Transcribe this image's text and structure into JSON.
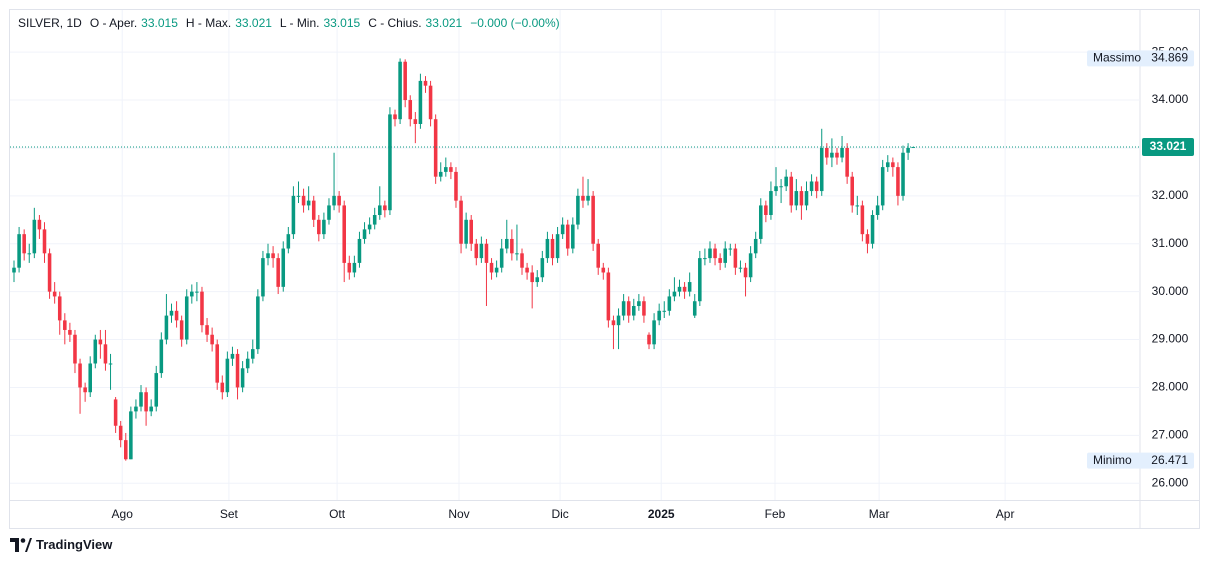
{
  "chart_data": {
    "type": "candlestick",
    "symbol": "SILVER, 1D",
    "ohlc_labels": [
      "O - Aper.",
      "H - Max.",
      "L - Min.",
      "C - Chius."
    ],
    "change_label": "−0.000 (−0.00%)",
    "up_color": "#089981",
    "down_color": "#f23645",
    "grid": true,
    "high_marker_label": "Massimo",
    "low_marker_label": "Minimo",
    "xlim": [
      -0.79,
      221.65
    ],
    "xticks": [
      {
        "value": 21.3,
        "label": "Ago"
      },
      {
        "value": 42.3,
        "label": "Set"
      },
      {
        "value": 63.6,
        "label": "Ott"
      },
      {
        "value": 87.6,
        "label": "Nov"
      },
      {
        "value": 107.5,
        "label": "Dic"
      },
      {
        "value": 127.4,
        "label": "2025"
      },
      {
        "value": 149.8,
        "label": "Feb"
      },
      {
        "value": 170.3,
        "label": "Mar"
      },
      {
        "value": 195.1,
        "label": "Apr"
      }
    ],
    "ylim": [
      25.65,
      35.88
    ],
    "yticks": [
      {
        "value": 26,
        "label": "26.000"
      },
      {
        "value": 27,
        "label": "27.000"
      },
      {
        "value": 28,
        "label": "28.000"
      },
      {
        "value": 29,
        "label": "29.000"
      },
      {
        "value": 30,
        "label": "30.000"
      },
      {
        "value": 31,
        "label": "31.000"
      },
      {
        "value": 32,
        "label": "32.000"
      },
      {
        "value": 33,
        "label": "33.000"
      },
      {
        "value": 34,
        "label": "34.000"
      },
      {
        "value": 35,
        "label": "35.000"
      }
    ],
    "ohlc": [
      [
        30.4,
        30.65,
        30.2,
        30.5
      ],
      [
        30.5,
        31.35,
        30.4,
        31.2
      ],
      [
        31.2,
        31.3,
        30.65,
        30.8
      ],
      [
        30.8,
        31.0,
        30.6,
        30.8
      ],
      [
        30.8,
        31.75,
        30.7,
        31.5
      ],
      [
        31.5,
        31.6,
        31.1,
        31.3
      ],
      [
        31.3,
        31.45,
        30.6,
        30.8
      ],
      [
        30.8,
        30.9,
        29.85,
        30.0
      ],
      [
        30.0,
        30.2,
        29.75,
        29.9
      ],
      [
        29.9,
        30.0,
        29.1,
        29.4
      ],
      [
        29.4,
        29.55,
        28.9,
        29.2
      ],
      [
        29.2,
        29.35,
        28.95,
        29.1
      ],
      [
        29.1,
        29.2,
        28.3,
        28.5
      ],
      [
        28.5,
        28.6,
        27.45,
        28.0
      ],
      [
        28.0,
        28.1,
        27.7,
        27.9
      ],
      [
        27.9,
        28.65,
        27.8,
        28.5
      ],
      [
        28.5,
        29.1,
        28.4,
        29.0
      ],
      [
        29.0,
        29.2,
        28.6,
        28.9
      ],
      [
        28.9,
        29.2,
        28.35,
        28.5
      ],
      [
        28.5,
        28.7,
        27.95,
        28.5
      ],
      [
        27.75,
        27.8,
        27.05,
        27.2
      ],
      [
        27.2,
        27.3,
        26.75,
        26.9
      ],
      [
        26.9,
        27.05,
        26.471,
        26.5
      ],
      [
        26.5,
        27.6,
        26.5,
        27.5
      ],
      [
        27.5,
        27.75,
        27.35,
        27.6
      ],
      [
        27.6,
        28.05,
        27.5,
        27.9
      ],
      [
        27.9,
        28.0,
        27.2,
        27.5
      ],
      [
        27.5,
        27.75,
        27.4,
        27.6
      ],
      [
        27.6,
        28.45,
        27.5,
        28.3
      ],
      [
        28.3,
        29.15,
        28.2,
        29.0
      ],
      [
        29.0,
        29.95,
        28.9,
        29.5
      ],
      [
        29.5,
        29.75,
        29.35,
        29.6
      ],
      [
        29.6,
        29.8,
        29.25,
        29.4
      ],
      [
        29.4,
        29.5,
        28.85,
        29.0
      ],
      [
        29.0,
        30.05,
        28.9,
        29.9
      ],
      [
        29.9,
        30.15,
        29.75,
        30.0
      ],
      [
        30.0,
        30.2,
        29.8,
        30.0
      ],
      [
        30.0,
        30.1,
        29.15,
        29.3
      ],
      [
        29.3,
        29.45,
        28.95,
        29.1
      ],
      [
        29.1,
        29.25,
        28.75,
        28.9
      ],
      [
        28.9,
        29.0,
        27.95,
        28.1
      ],
      [
        28.1,
        28.25,
        27.75,
        27.9
      ],
      [
        27.9,
        28.75,
        27.8,
        28.6
      ],
      [
        28.6,
        28.85,
        28.45,
        28.7
      ],
      [
        28.7,
        28.8,
        27.75,
        28.0
      ],
      [
        28.0,
        28.55,
        27.9,
        28.4
      ],
      [
        28.4,
        28.75,
        28.3,
        28.6
      ],
      [
        28.6,
        29.0,
        28.5,
        28.8
      ],
      [
        28.8,
        30.05,
        28.7,
        29.9
      ],
      [
        29.9,
        30.85,
        29.8,
        30.7
      ],
      [
        30.7,
        31.0,
        30.55,
        30.8
      ],
      [
        30.8,
        30.95,
        30.5,
        30.7
      ],
      [
        30.7,
        30.8,
        29.95,
        30.1
      ],
      [
        30.1,
        31.05,
        30.0,
        30.9
      ],
      [
        30.9,
        31.35,
        30.8,
        31.2
      ],
      [
        31.2,
        32.2,
        31.1,
        32.0
      ],
      [
        32.0,
        32.3,
        31.85,
        32.0
      ],
      [
        32.0,
        32.15,
        31.65,
        31.8
      ],
      [
        31.8,
        32.2,
        31.7,
        31.9
      ],
      [
        31.9,
        32.0,
        31.35,
        31.5
      ],
      [
        31.5,
        31.6,
        31.05,
        31.2
      ],
      [
        31.2,
        31.65,
        31.1,
        31.5
      ],
      [
        31.5,
        31.95,
        31.4,
        31.8
      ],
      [
        31.8,
        32.9,
        31.7,
        32.0
      ],
      [
        32.0,
        32.1,
        31.65,
        31.8
      ],
      [
        31.8,
        31.9,
        30.2,
        30.6
      ],
      [
        30.6,
        30.75,
        30.25,
        30.4
      ],
      [
        30.4,
        30.75,
        30.3,
        30.6
      ],
      [
        30.6,
        31.25,
        30.5,
        31.1
      ],
      [
        31.1,
        31.45,
        31.0,
        31.3
      ],
      [
        31.3,
        31.55,
        31.2,
        31.4
      ],
      [
        31.4,
        31.75,
        31.3,
        31.6
      ],
      [
        31.6,
        32.2,
        31.5,
        31.8
      ],
      [
        31.8,
        31.9,
        31.55,
        31.7
      ],
      [
        31.7,
        33.85,
        31.6,
        33.7
      ],
      [
        33.7,
        33.8,
        33.45,
        33.6
      ],
      [
        33.6,
        34.869,
        33.5,
        34.8
      ],
      [
        34.8,
        34.85,
        33.85,
        34.0
      ],
      [
        34.0,
        34.1,
        33.45,
        33.6
      ],
      [
        33.6,
        33.75,
        33.1,
        33.5
      ],
      [
        33.5,
        34.55,
        33.4,
        34.4
      ],
      [
        34.4,
        34.5,
        34.15,
        34.3
      ],
      [
        34.3,
        34.4,
        33.45,
        33.6
      ],
      [
        33.6,
        33.7,
        32.25,
        32.4
      ],
      [
        32.4,
        32.7,
        32.3,
        32.5
      ],
      [
        32.5,
        32.8,
        32.4,
        32.6
      ],
      [
        32.6,
        32.7,
        32.35,
        32.5
      ],
      [
        32.5,
        32.6,
        31.75,
        31.9
      ],
      [
        31.9,
        32.0,
        30.8,
        31.0
      ],
      [
        31.0,
        31.65,
        30.9,
        31.5
      ],
      [
        31.5,
        31.6,
        30.85,
        31.0
      ],
      [
        31.0,
        31.1,
        30.55,
        30.7
      ],
      [
        30.7,
        31.15,
        30.6,
        31.0
      ],
      [
        31.0,
        31.1,
        29.7,
        30.6
      ],
      [
        30.6,
        30.7,
        30.25,
        30.4
      ],
      [
        30.4,
        30.65,
        30.3,
        30.5
      ],
      [
        30.5,
        31.1,
        30.4,
        30.9
      ],
      [
        30.9,
        31.5,
        30.8,
        31.1
      ],
      [
        31.1,
        31.3,
        30.65,
        30.8
      ],
      [
        30.8,
        31.4,
        30.65,
        30.8
      ],
      [
        30.8,
        30.9,
        30.35,
        30.5
      ],
      [
        30.5,
        30.6,
        30.25,
        30.4
      ],
      [
        30.4,
        30.55,
        29.65,
        30.2
      ],
      [
        30.2,
        30.45,
        30.1,
        30.3
      ],
      [
        30.3,
        30.85,
        30.2,
        30.7
      ],
      [
        30.7,
        31.25,
        30.6,
        31.1
      ],
      [
        31.1,
        31.2,
        30.55,
        30.7
      ],
      [
        30.7,
        31.35,
        30.6,
        31.2
      ],
      [
        31.2,
        31.55,
        31.1,
        31.4
      ],
      [
        31.4,
        31.5,
        30.75,
        30.9
      ],
      [
        30.9,
        31.55,
        30.8,
        31.4
      ],
      [
        31.4,
        32.15,
        31.3,
        32.0
      ],
      [
        32.0,
        32.4,
        31.75,
        31.9
      ],
      [
        31.9,
        32.35,
        31.8,
        32.0
      ],
      [
        32.0,
        32.1,
        30.85,
        31.0
      ],
      [
        31.0,
        31.1,
        30.35,
        30.5
      ],
      [
        30.5,
        30.6,
        30.25,
        30.4
      ],
      [
        30.4,
        30.5,
        29.25,
        29.4
      ],
      [
        29.4,
        29.5,
        28.8,
        29.3
      ],
      [
        29.3,
        29.65,
        28.8,
        29.5
      ],
      [
        29.5,
        29.95,
        29.4,
        29.8
      ],
      [
        29.8,
        29.9,
        29.35,
        29.5
      ],
      [
        29.5,
        29.85,
        29.4,
        29.7
      ],
      [
        29.7,
        29.95,
        29.6,
        29.8
      ],
      [
        29.8,
        29.9,
        29.35,
        29.5
      ],
      [
        29.1,
        29.15,
        28.8,
        28.9
      ],
      [
        28.9,
        29.55,
        28.8,
        29.4
      ],
      [
        29.4,
        29.75,
        29.3,
        29.6
      ],
      [
        29.6,
        29.8,
        29.45,
        29.6
      ],
      [
        29.6,
        30.05,
        29.5,
        29.9
      ],
      [
        29.9,
        30.3,
        29.8,
        30.0
      ],
      [
        30.0,
        30.25,
        29.9,
        30.1
      ],
      [
        30.1,
        30.2,
        29.85,
        30.0
      ],
      [
        30.0,
        30.4,
        29.9,
        30.2
      ],
      [
        29.5,
        29.95,
        29.45,
        29.8
      ],
      [
        29.8,
        30.85,
        29.7,
        30.7
      ],
      [
        30.7,
        30.9,
        30.55,
        30.7
      ],
      [
        30.7,
        31.05,
        30.6,
        30.9
      ],
      [
        30.9,
        31.0,
        30.55,
        30.7
      ],
      [
        30.7,
        30.8,
        30.45,
        30.6
      ],
      [
        30.6,
        31.05,
        30.5,
        30.9
      ],
      [
        30.9,
        31.0,
        30.75,
        30.9
      ],
      [
        30.9,
        31.0,
        30.35,
        30.5
      ],
      [
        30.5,
        30.65,
        30.4,
        30.5
      ],
      [
        30.5,
        30.6,
        29.9,
        30.3
      ],
      [
        30.3,
        30.95,
        30.2,
        30.8
      ],
      [
        30.8,
        31.25,
        30.7,
        31.1
      ],
      [
        31.1,
        31.95,
        31.0,
        31.8
      ],
      [
        31.8,
        31.9,
        31.45,
        31.6
      ],
      [
        31.6,
        32.3,
        31.5,
        32.1
      ],
      [
        32.1,
        32.6,
        32.0,
        32.2
      ],
      [
        32.2,
        32.35,
        31.85,
        32.2
      ],
      [
        32.2,
        32.55,
        32.1,
        32.4
      ],
      [
        32.4,
        32.5,
        31.65,
        31.8
      ],
      [
        31.8,
        32.35,
        31.7,
        32.1
      ],
      [
        32.1,
        32.2,
        31.5,
        31.8
      ],
      [
        31.8,
        32.3,
        31.7,
        32.1
      ],
      [
        32.1,
        32.45,
        32.0,
        32.3
      ],
      [
        32.3,
        32.4,
        31.95,
        32.1
      ],
      [
        32.1,
        33.4,
        32.0,
        33.0
      ],
      [
        33.0,
        33.1,
        32.65,
        32.8
      ],
      [
        32.8,
        33.2,
        32.6,
        32.9
      ],
      [
        32.9,
        33.0,
        32.65,
        32.8
      ],
      [
        32.8,
        33.25,
        32.7,
        33.0
      ],
      [
        33.0,
        33.1,
        32.25,
        32.4
      ],
      [
        32.4,
        32.5,
        31.65,
        31.8
      ],
      [
        31.8,
        32.0,
        31.6,
        31.8
      ],
      [
        31.8,
        31.9,
        31.05,
        31.2
      ],
      [
        31.2,
        31.3,
        30.8,
        31.0
      ],
      [
        31.0,
        31.7,
        30.9,
        31.6
      ],
      [
        31.6,
        32.0,
        31.5,
        31.8
      ],
      [
        31.8,
        32.75,
        31.7,
        32.6
      ],
      [
        32.6,
        32.85,
        32.5,
        32.7
      ],
      [
        32.7,
        32.8,
        32.4,
        32.6
      ],
      [
        32.6,
        32.7,
        31.8,
        32.0
      ],
      [
        32.0,
        33.05,
        31.9,
        32.9
      ],
      [
        32.9,
        33.1,
        32.75,
        33.0
      ],
      [
        33.015,
        33.021,
        33.015,
        33.021
      ]
    ]
  },
  "footer": {
    "brand": "TradingView"
  }
}
